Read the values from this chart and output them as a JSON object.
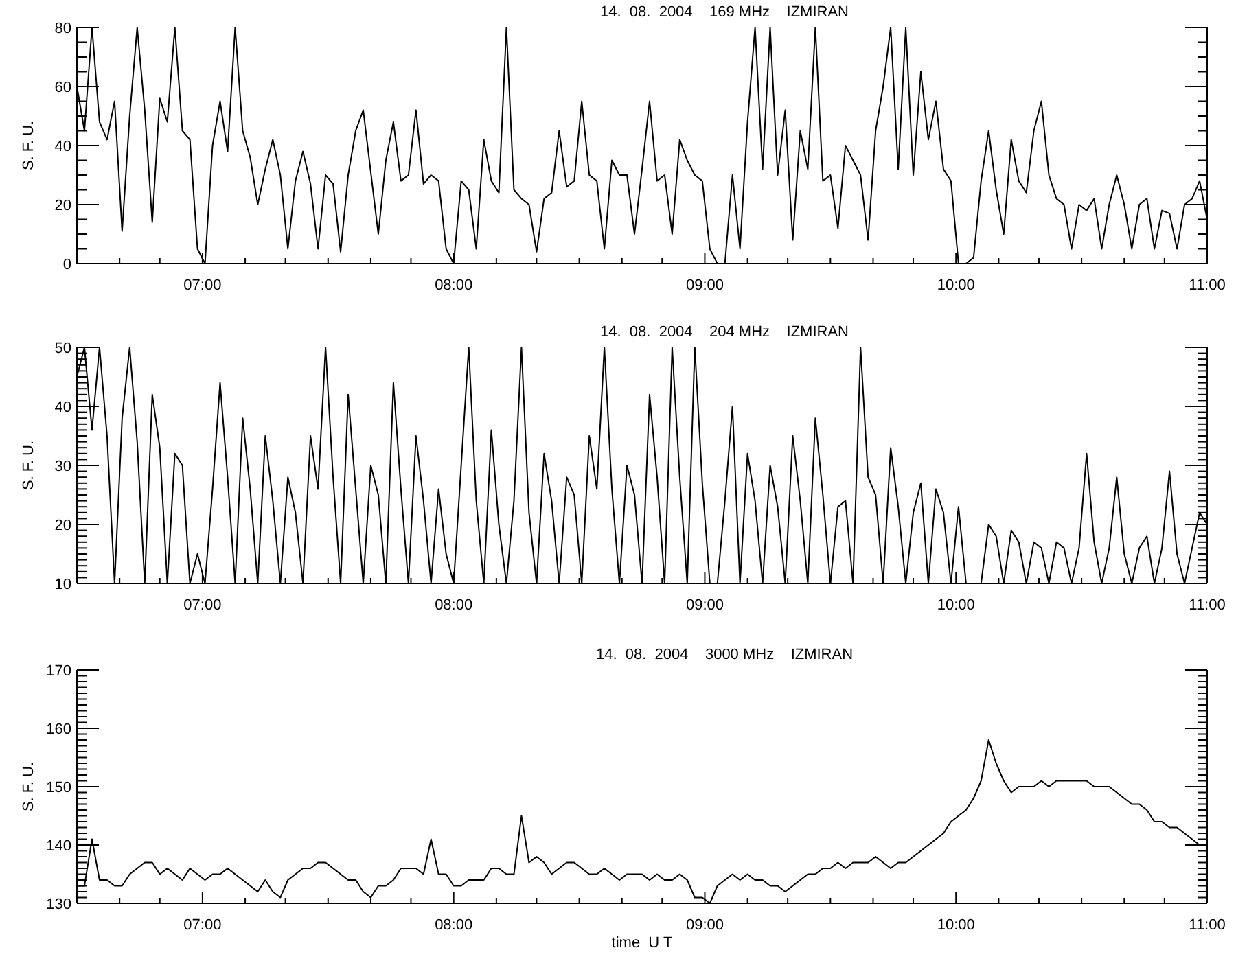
{
  "chart_data": [
    {
      "type": "line",
      "title": "14.  08.  2004    169 MHz    IZMIRAN",
      "ylabel": "S. F. U.",
      "xlim": [
        6.5,
        11
      ],
      "ylim": [
        0,
        80
      ],
      "xticks": [
        {
          "value": 6.67,
          "label": null
        },
        {
          "value": 6.83,
          "label": null
        },
        {
          "value": 7,
          "label": "07:00"
        },
        {
          "value": 7.17,
          "label": null
        },
        {
          "value": 7.33,
          "label": null
        },
        {
          "value": 7.5,
          "label": null
        },
        {
          "value": 7.67,
          "label": null
        },
        {
          "value": 7.83,
          "label": null
        },
        {
          "value": 8,
          "label": "08:00"
        },
        {
          "value": 8.17,
          "label": null
        },
        {
          "value": 8.33,
          "label": null
        },
        {
          "value": 8.5,
          "label": null
        },
        {
          "value": 8.67,
          "label": null
        },
        {
          "value": 8.83,
          "label": null
        },
        {
          "value": 9,
          "label": "09:00"
        },
        {
          "value": 9.17,
          "label": null
        },
        {
          "value": 9.33,
          "label": null
        },
        {
          "value": 9.5,
          "label": null
        },
        {
          "value": 9.67,
          "label": null
        },
        {
          "value": 9.83,
          "label": null
        },
        {
          "value": 10,
          "label": "10:00"
        },
        {
          "value": 10.17,
          "label": null
        },
        {
          "value": 10.33,
          "label": null
        },
        {
          "value": 10.5,
          "label": null
        },
        {
          "value": 10.67,
          "label": null
        },
        {
          "value": 10.83,
          "label": null
        },
        {
          "value": 11,
          "label": "11:00"
        }
      ],
      "yticks": [
        0,
        {
          "value": 5,
          "label": null
        },
        {
          "value": 10,
          "label": null
        },
        {
          "value": 15,
          "label": null
        },
        20,
        {
          "value": 25,
          "label": null
        },
        {
          "value": 30,
          "label": null
        },
        {
          "value": 35,
          "label": null
        },
        40,
        {
          "value": 45,
          "label": null
        },
        {
          "value": 50,
          "label": null
        },
        {
          "value": 55,
          "label": null
        },
        60,
        {
          "value": 65,
          "label": null
        },
        {
          "value": 70,
          "label": null
        },
        {
          "value": 75,
          "label": null
        },
        80
      ],
      "x": [
        6.5,
        6.53,
        6.56,
        6.59,
        6.62,
        6.65,
        6.68,
        6.71,
        6.74,
        6.77,
        6.8,
        6.83,
        6.86,
        6.89,
        6.92,
        6.95,
        6.98,
        7.01,
        7.04,
        7.07,
        7.1,
        7.13,
        7.16,
        7.19,
        7.22,
        7.25,
        7.28,
        7.31,
        7.34,
        7.37,
        7.4,
        7.43,
        7.46,
        7.49,
        7.52,
        7.55,
        7.58,
        7.61,
        7.64,
        7.67,
        7.7,
        7.73,
        7.76,
        7.79,
        7.82,
        7.85,
        7.88,
        7.91,
        7.94,
        7.97,
        8,
        8.03,
        8.06,
        8.09,
        8.12,
        8.15,
        8.18,
        8.21,
        8.24,
        8.27,
        8.3,
        8.33,
        8.36,
        8.39,
        8.42,
        8.45,
        8.48,
        8.51,
        8.54,
        8.57,
        8.6,
        8.63,
        8.66,
        8.69,
        8.72,
        8.75,
        8.78,
        8.81,
        8.84,
        8.87,
        8.9,
        8.93,
        8.96,
        8.99,
        9.02,
        9.05,
        9.08,
        9.11,
        9.14,
        9.17,
        9.2,
        9.23,
        9.26,
        9.29,
        9.32,
        9.35,
        9.38,
        9.41,
        9.44,
        9.47,
        9.5,
        9.53,
        9.56,
        9.59,
        9.62,
        9.65,
        9.68,
        9.71,
        9.74,
        9.77,
        9.8,
        9.83,
        9.86,
        9.89,
        9.92,
        9.95,
        9.98,
        10.01,
        10.04,
        10.07,
        10.1,
        10.13,
        10.16,
        10.19,
        10.22,
        10.25,
        10.28,
        10.31,
        10.34,
        10.37,
        10.4,
        10.43,
        10.46,
        10.49,
        10.52,
        10.55,
        10.58,
        10.61,
        10.64,
        10.67,
        10.7,
        10.73,
        10.76,
        10.79,
        10.82,
        10.85,
        10.88,
        10.91,
        10.94,
        10.97,
        11
      ],
      "series": [
        {
          "color": "#000000",
          "values": [
            60,
            45,
            80,
            48,
            42,
            55,
            11,
            50,
            80,
            52,
            14,
            56,
            48,
            80,
            45,
            42,
            5,
            0,
            40,
            55,
            38,
            80,
            45,
            36,
            20,
            32,
            42,
            30,
            5,
            28,
            38,
            27,
            5,
            30,
            27,
            4,
            30,
            45,
            52,
            31,
            10,
            35,
            48,
            28,
            30,
            52,
            27,
            30,
            28,
            5,
            0,
            28,
            25,
            5,
            42,
            28,
            24,
            80,
            25,
            22,
            20,
            4,
            22,
            24,
            45,
            26,
            28,
            55,
            30,
            28,
            5,
            35,
            30,
            30,
            10,
            32,
            55,
            28,
            30,
            10,
            42,
            35,
            30,
            28,
            5,
            0,
            0,
            30,
            5,
            48,
            80,
            32,
            80,
            30,
            52,
            8,
            45,
            32,
            80,
            28,
            30,
            12,
            40,
            35,
            30,
            8,
            45,
            60,
            80,
            32,
            80,
            30,
            65,
            42,
            55,
            32,
            28,
            0,
            0,
            2,
            28,
            45,
            25,
            10,
            42,
            28,
            24,
            45,
            55,
            30,
            22,
            20,
            5,
            20,
            18,
            22,
            5,
            20,
            30,
            20,
            5,
            20,
            22,
            5,
            18,
            17,
            5,
            20,
            22,
            28,
            15
          ]
        }
      ]
    },
    {
      "type": "line",
      "title": "14.  08.  2004    204 MHz    IZMIRAN",
      "ylabel": "S. F. U.",
      "xlim": [
        6.5,
        11
      ],
      "ylim": [
        10,
        50
      ],
      "xticks": [
        {
          "value": 6.67,
          "label": null
        },
        {
          "value": 6.83,
          "label": null
        },
        {
          "value": 7,
          "label": "07:00"
        },
        {
          "value": 7.17,
          "label": null
        },
        {
          "value": 7.33,
          "label": null
        },
        {
          "value": 7.5,
          "label": null
        },
        {
          "value": 7.67,
          "label": null
        },
        {
          "value": 7.83,
          "label": null
        },
        {
          "value": 8,
          "label": "08:00"
        },
        {
          "value": 8.17,
          "label": null
        },
        {
          "value": 8.33,
          "label": null
        },
        {
          "value": 8.5,
          "label": null
        },
        {
          "value": 8.67,
          "label": null
        },
        {
          "value": 8.83,
          "label": null
        },
        {
          "value": 9,
          "label": "09:00"
        },
        {
          "value": 9.17,
          "label": null
        },
        {
          "value": 9.33,
          "label": null
        },
        {
          "value": 9.5,
          "label": null
        },
        {
          "value": 9.67,
          "label": null
        },
        {
          "value": 9.83,
          "label": null
        },
        {
          "value": 10,
          "label": "10:00"
        },
        {
          "value": 10.17,
          "label": null
        },
        {
          "value": 10.33,
          "label": null
        },
        {
          "value": 10.5,
          "label": null
        },
        {
          "value": 10.67,
          "label": null
        },
        {
          "value": 10.83,
          "label": null
        },
        {
          "value": 11,
          "label": "11:00"
        }
      ],
      "yticks": [
        10,
        {
          "value": 11,
          "label": null
        },
        {
          "value": 12,
          "label": null
        },
        {
          "value": 13,
          "label": null
        },
        {
          "value": 14,
          "label": null
        },
        {
          "value": 15,
          "label": null
        },
        {
          "value": 16,
          "label": null
        },
        {
          "value": 17,
          "label": null
        },
        {
          "value": 18,
          "label": null
        },
        {
          "value": 19,
          "label": null
        },
        20,
        {
          "value": 21,
          "label": null
        },
        {
          "value": 22,
          "label": null
        },
        {
          "value": 23,
          "label": null
        },
        {
          "value": 24,
          "label": null
        },
        {
          "value": 25,
          "label": null
        },
        {
          "value": 26,
          "label": null
        },
        {
          "value": 27,
          "label": null
        },
        {
          "value": 28,
          "label": null
        },
        {
          "value": 29,
          "label": null
        },
        30,
        {
          "value": 31,
          "label": null
        },
        {
          "value": 32,
          "label": null
        },
        {
          "value": 33,
          "label": null
        },
        {
          "value": 34,
          "label": null
        },
        {
          "value": 35,
          "label": null
        },
        {
          "value": 36,
          "label": null
        },
        {
          "value": 37,
          "label": null
        },
        {
          "value": 38,
          "label": null
        },
        {
          "value": 39,
          "label": null
        },
        40,
        {
          "value": 41,
          "label": null
        },
        {
          "value": 42,
          "label": null
        },
        {
          "value": 43,
          "label": null
        },
        {
          "value": 44,
          "label": null
        },
        {
          "value": 45,
          "label": null
        },
        {
          "value": 46,
          "label": null
        },
        {
          "value": 47,
          "label": null
        },
        {
          "value": 48,
          "label": null
        },
        {
          "value": 49,
          "label": null
        },
        50
      ],
      "x": [
        6.5,
        6.53,
        6.56,
        6.59,
        6.62,
        6.65,
        6.68,
        6.71,
        6.74,
        6.77,
        6.8,
        6.83,
        6.86,
        6.89,
        6.92,
        6.95,
        6.98,
        7.01,
        7.04,
        7.07,
        7.1,
        7.13,
        7.16,
        7.19,
        7.22,
        7.25,
        7.28,
        7.31,
        7.34,
        7.37,
        7.4,
        7.43,
        7.46,
        7.49,
        7.52,
        7.55,
        7.58,
        7.61,
        7.64,
        7.67,
        7.7,
        7.73,
        7.76,
        7.79,
        7.82,
        7.85,
        7.88,
        7.91,
        7.94,
        7.97,
        8,
        8.03,
        8.06,
        8.09,
        8.12,
        8.15,
        8.18,
        8.21,
        8.24,
        8.27,
        8.3,
        8.33,
        8.36,
        8.39,
        8.42,
        8.45,
        8.48,
        8.51,
        8.54,
        8.57,
        8.6,
        8.63,
        8.66,
        8.69,
        8.72,
        8.75,
        8.78,
        8.81,
        8.84,
        8.87,
        8.9,
        8.93,
        8.96,
        8.99,
        9.02,
        9.05,
        9.08,
        9.11,
        9.14,
        9.17,
        9.2,
        9.23,
        9.26,
        9.29,
        9.32,
        9.35,
        9.38,
        9.41,
        9.44,
        9.47,
        9.5,
        9.53,
        9.56,
        9.59,
        9.62,
        9.65,
        9.68,
        9.71,
        9.74,
        9.77,
        9.8,
        9.83,
        9.86,
        9.89,
        9.92,
        9.95,
        9.98,
        10.01,
        10.04,
        10.07,
        10.1,
        10.13,
        10.16,
        10.19,
        10.22,
        10.25,
        10.28,
        10.31,
        10.34,
        10.37,
        10.4,
        10.43,
        10.46,
        10.49,
        10.52,
        10.55,
        10.58,
        10.61,
        10.64,
        10.67,
        10.7,
        10.73,
        10.76,
        10.79,
        10.82,
        10.85,
        10.88,
        10.91,
        10.94,
        10.97,
        11
      ],
      "series": [
        {
          "color": "#000000",
          "values": [
            45,
            50,
            36,
            50,
            35,
            10,
            38,
            50,
            34,
            10,
            42,
            33,
            10,
            32,
            30,
            10,
            15,
            10,
            26,
            44,
            28,
            10,
            38,
            26,
            10,
            35,
            24,
            10,
            28,
            22,
            10,
            35,
            26,
            50,
            28,
            10,
            42,
            26,
            10,
            30,
            25,
            10,
            44,
            26,
            10,
            35,
            24,
            10,
            26,
            15,
            10,
            30,
            50,
            24,
            10,
            36,
            20,
            10,
            24,
            50,
            22,
            10,
            32,
            24,
            10,
            28,
            25,
            10,
            35,
            26,
            50,
            26,
            10,
            30,
            25,
            10,
            42,
            28,
            10,
            50,
            28,
            10,
            50,
            27,
            10,
            10,
            24,
            40,
            10,
            32,
            24,
            10,
            30,
            23,
            10,
            35,
            24,
            10,
            38,
            25,
            10,
            23,
            24,
            10,
            50,
            28,
            25,
            10,
            33,
            23,
            10,
            22,
            27,
            10,
            26,
            22,
            10,
            23,
            10,
            10,
            10,
            20,
            18,
            10,
            19,
            17,
            10,
            17,
            16,
            10,
            17,
            16,
            10,
            16,
            32,
            17,
            10,
            16,
            28,
            15,
            10,
            16,
            18,
            10,
            16,
            29,
            15,
            10,
            16,
            22,
            20
          ]
        }
      ]
    },
    {
      "type": "line",
      "title": "14.  08.  2004    3000 MHz    IZMIRAN",
      "ylabel": "S. F. U.",
      "xlabel": "time  U T",
      "xlim": [
        6.5,
        11
      ],
      "ylim": [
        130,
        170
      ],
      "xticks": [
        {
          "value": 6.67,
          "label": null
        },
        {
          "value": 6.83,
          "label": null
        },
        {
          "value": 7,
          "label": "07:00"
        },
        {
          "value": 7.17,
          "label": null
        },
        {
          "value": 7.33,
          "label": null
        },
        {
          "value": 7.5,
          "label": null
        },
        {
          "value": 7.67,
          "label": null
        },
        {
          "value": 7.83,
          "label": null
        },
        {
          "value": 8,
          "label": "08:00"
        },
        {
          "value": 8.17,
          "label": null
        },
        {
          "value": 8.33,
          "label": null
        },
        {
          "value": 8.5,
          "label": null
        },
        {
          "value": 8.67,
          "label": null
        },
        {
          "value": 8.83,
          "label": null
        },
        {
          "value": 9,
          "label": "09:00"
        },
        {
          "value": 9.17,
          "label": null
        },
        {
          "value": 9.33,
          "label": null
        },
        {
          "value": 9.5,
          "label": null
        },
        {
          "value": 9.67,
          "label": null
        },
        {
          "value": 9.83,
          "label": null
        },
        {
          "value": 10,
          "label": "10:00"
        },
        {
          "value": 10.17,
          "label": null
        },
        {
          "value": 10.33,
          "label": null
        },
        {
          "value": 10.5,
          "label": null
        },
        {
          "value": 10.67,
          "label": null
        },
        {
          "value": 10.83,
          "label": null
        },
        {
          "value": 11,
          "label": "11:00"
        }
      ],
      "yticks": [
        130,
        {
          "value": 131,
          "label": null
        },
        {
          "value": 132,
          "label": null
        },
        {
          "value": 133,
          "label": null
        },
        {
          "value": 134,
          "label": null
        },
        {
          "value": 135,
          "label": null
        },
        {
          "value": 136,
          "label": null
        },
        {
          "value": 137,
          "label": null
        },
        {
          "value": 138,
          "label": null
        },
        {
          "value": 139,
          "label": null
        },
        140,
        {
          "value": 141,
          "label": null
        },
        {
          "value": 142,
          "label": null
        },
        {
          "value": 143,
          "label": null
        },
        {
          "value": 144,
          "label": null
        },
        {
          "value": 145,
          "label": null
        },
        {
          "value": 146,
          "label": null
        },
        {
          "value": 147,
          "label": null
        },
        {
          "value": 148,
          "label": null
        },
        {
          "value": 149,
          "label": null
        },
        150,
        {
          "value": 151,
          "label": null
        },
        {
          "value": 152,
          "label": null
        },
        {
          "value": 153,
          "label": null
        },
        {
          "value": 154,
          "label": null
        },
        {
          "value": 155,
          "label": null
        },
        {
          "value": 156,
          "label": null
        },
        {
          "value": 157,
          "label": null
        },
        {
          "value": 158,
          "label": null
        },
        {
          "value": 159,
          "label": null
        },
        160,
        {
          "value": 161,
          "label": null
        },
        {
          "value": 162,
          "label": null
        },
        {
          "value": 163,
          "label": null
        },
        {
          "value": 164,
          "label": null
        },
        {
          "value": 165,
          "label": null
        },
        {
          "value": 166,
          "label": null
        },
        {
          "value": 167,
          "label": null
        },
        {
          "value": 168,
          "label": null
        },
        {
          "value": 169,
          "label": null
        },
        170
      ],
      "x": [
        6.5,
        6.53,
        6.56,
        6.59,
        6.62,
        6.65,
        6.68,
        6.71,
        6.74,
        6.77,
        6.8,
        6.83,
        6.86,
        6.89,
        6.92,
        6.95,
        6.98,
        7.01,
        7.04,
        7.07,
        7.1,
        7.13,
        7.16,
        7.19,
        7.22,
        7.25,
        7.28,
        7.31,
        7.34,
        7.37,
        7.4,
        7.43,
        7.46,
        7.49,
        7.52,
        7.55,
        7.58,
        7.61,
        7.64,
        7.67,
        7.7,
        7.73,
        7.76,
        7.79,
        7.82,
        7.85,
        7.88,
        7.91,
        7.94,
        7.97,
        8,
        8.03,
        8.06,
        8.09,
        8.12,
        8.15,
        8.18,
        8.21,
        8.24,
        8.27,
        8.3,
        8.33,
        8.36,
        8.39,
        8.42,
        8.45,
        8.48,
        8.51,
        8.54,
        8.57,
        8.6,
        8.63,
        8.66,
        8.69,
        8.72,
        8.75,
        8.78,
        8.81,
        8.84,
        8.87,
        8.9,
        8.93,
        8.96,
        8.99,
        9.02,
        9.05,
        9.08,
        9.11,
        9.14,
        9.17,
        9.2,
        9.23,
        9.26,
        9.29,
        9.32,
        9.35,
        9.38,
        9.41,
        9.44,
        9.47,
        9.5,
        9.53,
        9.56,
        9.59,
        9.62,
        9.65,
        9.68,
        9.71,
        9.74,
        9.77,
        9.8,
        9.83,
        9.86,
        9.89,
        9.92,
        9.95,
        9.98,
        10.01,
        10.04,
        10.07,
        10.1,
        10.13,
        10.16,
        10.19,
        10.22,
        10.25,
        10.28,
        10.31,
        10.34,
        10.37,
        10.4,
        10.43,
        10.46,
        10.49,
        10.52,
        10.55,
        10.58,
        10.61,
        10.64,
        10.67,
        10.7,
        10.73,
        10.76,
        10.79,
        10.82,
        10.85,
        10.88,
        10.91,
        10.94,
        10.97,
        11
      ],
      "series": [
        {
          "color": "#000000",
          "values": [
            133,
            133,
            141,
            134,
            134,
            133,
            133,
            135,
            136,
            137,
            137,
            135,
            136,
            135,
            134,
            136,
            135,
            134,
            135,
            135,
            136,
            135,
            134,
            133,
            132,
            134,
            132,
            131,
            134,
            135,
            136,
            136,
            137,
            137,
            136,
            135,
            134,
            134,
            132,
            131,
            133,
            133,
            134,
            136,
            136,
            136,
            135,
            141,
            135,
            135,
            133,
            133,
            134,
            134,
            134,
            136,
            136,
            135,
            135,
            145,
            137,
            138,
            137,
            135,
            136,
            137,
            137,
            136,
            135,
            135,
            136,
            135,
            134,
            135,
            135,
            135,
            134,
            135,
            134,
            134,
            135,
            134,
            131,
            131,
            130,
            133,
            134,
            135,
            134,
            135,
            134,
            134,
            133,
            133,
            132,
            133,
            134,
            135,
            135,
            136,
            136,
            137,
            136,
            137,
            137,
            137,
            138,
            137,
            136,
            137,
            137,
            138,
            139,
            140,
            141,
            142,
            144,
            145,
            146,
            148,
            151,
            158,
            154,
            151,
            149,
            150,
            150,
            150,
            151,
            150,
            151,
            151,
            151,
            151,
            151,
            150,
            150,
            150,
            149,
            148,
            147,
            147,
            146,
            144,
            144,
            143,
            143,
            142,
            141,
            140,
            140
          ]
        }
      ]
    }
  ]
}
